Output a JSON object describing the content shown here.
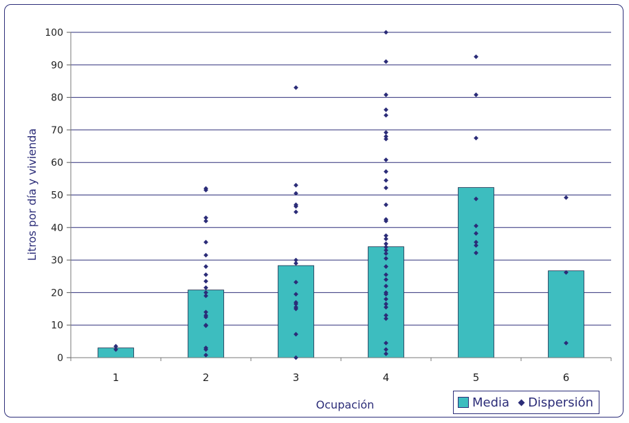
{
  "colors": {
    "bar": "#3dbdbf",
    "bar_edge": "#1a2a4a",
    "marker": "#2b2c78",
    "grid": "#2b2c78",
    "frame": "#2b2c78"
  },
  "chart_data": {
    "type": "bar",
    "title": "",
    "xlabel": "Ocupación",
    "ylabel": "Litros por día y vivienda",
    "ylim": [
      0,
      100
    ],
    "yticks": [
      0,
      10,
      20,
      30,
      40,
      50,
      60,
      70,
      80,
      90,
      100
    ],
    "categories": [
      "1",
      "2",
      "3",
      "4",
      "5",
      "6"
    ],
    "grid": "horizontal",
    "legend_position": "bottom-right",
    "series": [
      {
        "name": "Media",
        "type": "bar",
        "values": [
          3,
          20.8,
          28.3,
          34.1,
          52.3,
          26.7
        ]
      },
      {
        "name": "Dispersión",
        "type": "scatter",
        "marker": "diamond",
        "points": [
          [
            "1",
            3.5
          ],
          [
            "1",
            2.5
          ],
          [
            "2",
            52
          ],
          [
            "2",
            51.5
          ],
          [
            "2",
            43
          ],
          [
            "2",
            42
          ],
          [
            "2",
            35.5
          ],
          [
            "2",
            31.5
          ],
          [
            "2",
            28
          ],
          [
            "2",
            25.5
          ],
          [
            "2",
            23.5
          ],
          [
            "2",
            21.5
          ],
          [
            "2",
            20
          ],
          [
            "2",
            19
          ],
          [
            "2",
            14
          ],
          [
            "2",
            13
          ],
          [
            "2",
            12.5
          ],
          [
            "2",
            10
          ],
          [
            "2",
            9.8
          ],
          [
            "2",
            3
          ],
          [
            "2",
            2.5
          ],
          [
            "2",
            0.8
          ],
          [
            "3",
            83
          ],
          [
            "3",
            53
          ],
          [
            "3",
            50.5
          ],
          [
            "3",
            47
          ],
          [
            "3",
            46.5
          ],
          [
            "3",
            44.8
          ],
          [
            "3",
            30
          ],
          [
            "3",
            29
          ],
          [
            "3",
            23.2
          ],
          [
            "3",
            19.5
          ],
          [
            "3",
            17
          ],
          [
            "3",
            16.5
          ],
          [
            "3",
            15.5
          ],
          [
            "3",
            15
          ],
          [
            "3",
            7.2
          ],
          [
            "3",
            0
          ],
          [
            "4",
            100
          ],
          [
            "4",
            91
          ],
          [
            "4",
            80.8
          ],
          [
            "4",
            76.2
          ],
          [
            "4",
            74.5
          ],
          [
            "4",
            69.2
          ],
          [
            "4",
            68
          ],
          [
            "4",
            67.2
          ],
          [
            "4",
            60.8
          ],
          [
            "4",
            57.2
          ],
          [
            "4",
            54.5
          ],
          [
            "4",
            52.2
          ],
          [
            "4",
            47
          ],
          [
            "4",
            42.5
          ],
          [
            "4",
            42
          ],
          [
            "4",
            37.5
          ],
          [
            "4",
            36.5
          ],
          [
            "4",
            35
          ],
          [
            "4",
            34
          ],
          [
            "4",
            33
          ],
          [
            "4",
            32
          ],
          [
            "4",
            30.5
          ],
          [
            "4",
            28
          ],
          [
            "4",
            25.5
          ],
          [
            "4",
            24
          ],
          [
            "4",
            22
          ],
          [
            "4",
            20
          ],
          [
            "4",
            19.5
          ],
          [
            "4",
            18
          ],
          [
            "4",
            16.5
          ],
          [
            "4",
            15.5
          ],
          [
            "4",
            13
          ],
          [
            "4",
            12
          ],
          [
            "4",
            4.5
          ],
          [
            "4",
            2.5
          ],
          [
            "4",
            1.2
          ],
          [
            "5",
            92.5
          ],
          [
            "5",
            80.8
          ],
          [
            "5",
            67.5
          ],
          [
            "5",
            48.8
          ],
          [
            "5",
            40.5
          ],
          [
            "5",
            38.2
          ],
          [
            "5",
            35.5
          ],
          [
            "5",
            34.5
          ],
          [
            "5",
            32.2
          ],
          [
            "6",
            49.2
          ],
          [
            "6",
            26.2
          ],
          [
            "6",
            4.5
          ]
        ]
      }
    ]
  }
}
